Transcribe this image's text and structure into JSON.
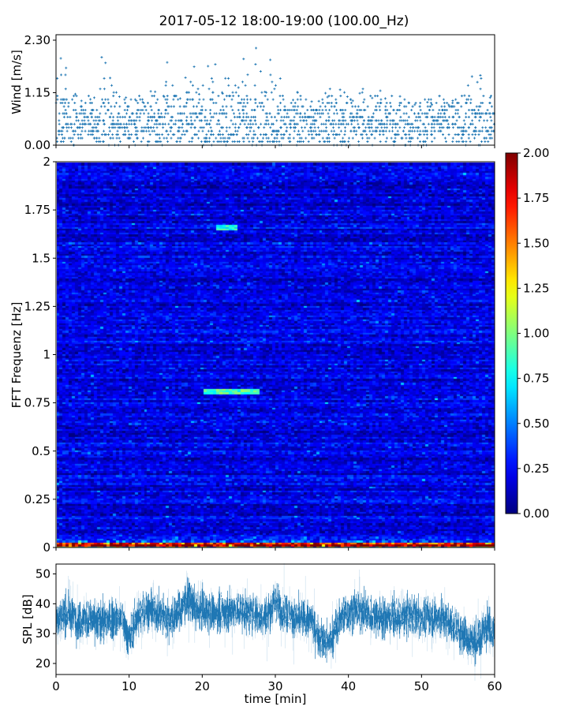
{
  "title": "2017-05-12 18:00-19:00 (100.00_Hz)",
  "chart_data": [
    {
      "type": "scatter",
      "ylabel": "Wind [m/s]",
      "xlim": [
        0,
        60
      ],
      "ylim": [
        0,
        2.42
      ],
      "yticks": [
        "0.00",
        "1.15",
        "2.30"
      ],
      "marker": "+",
      "color": "#1f77b4",
      "per_minute_max": [
        2.0,
        1.7,
        1.2,
        1.0,
        1.1,
        1.2,
        1.9,
        1.6,
        1.2,
        1.2,
        1.0,
        1.1,
        1.3,
        1.2,
        1.2,
        1.9,
        1.2,
        1.6,
        1.9,
        1.2,
        2.0,
        1.9,
        1.3,
        1.7,
        1.3,
        1.9,
        1.7,
        2.3,
        1.2,
        1.9,
        1.6,
        1.2,
        1.1,
        1.2,
        1.1,
        1.0,
        1.2,
        1.2,
        1.3,
        1.2,
        1.1,
        1.2,
        1.0,
        1.1,
        1.2,
        1.1,
        1.0,
        1.1,
        1.0,
        1.0,
        1.1,
        1.0,
        1.1,
        1.0,
        1.0,
        1.1,
        1.6,
        1.4,
        1.6,
        1.2
      ]
    },
    {
      "type": "heatmap",
      "ylabel": "FFT Frequenz [Hz]",
      "xlim": [
        0,
        60
      ],
      "ylim": [
        0,
        2
      ],
      "yticks": [
        "0",
        "0.25",
        "0.5",
        "0.75",
        "1",
        "1.25",
        "1.5",
        "1.75",
        "2"
      ],
      "colormap": "jet",
      "clim": [
        0,
        2
      ],
      "colorbar_ticks": [
        "0.00",
        "0.25",
        "0.50",
        "0.75",
        "1.00",
        "1.25",
        "1.50",
        "1.75",
        "2.00"
      ],
      "typical_value": 0.2,
      "features": [
        {
          "freq": 0.82,
          "t_start": 20,
          "t_end": 28,
          "value": 1.0
        },
        {
          "freq": 1.67,
          "t_start": 22,
          "t_end": 25,
          "value": 0.9
        },
        {
          "freq": 0.02,
          "t_start": 0,
          "t_end": 60,
          "value": 1.6
        }
      ]
    },
    {
      "type": "line",
      "ylabel": "SPL [dB]",
      "xlabel": "time [min]",
      "xlim": [
        0,
        60
      ],
      "ylim": [
        16.3,
        53.3
      ],
      "yticks": [
        "20",
        "30",
        "40",
        "50"
      ],
      "xticks": [
        "0",
        "10",
        "20",
        "30",
        "40",
        "50",
        "60"
      ],
      "color": "#1f77b4",
      "per_minute_mean": [
        35,
        36,
        37,
        34,
        35,
        34,
        34,
        34,
        35,
        35,
        28,
        35,
        38,
        38,
        37,
        35,
        35,
        38,
        42,
        38,
        38,
        37,
        37,
        37,
        38,
        38,
        37,
        37,
        36,
        36,
        41,
        38,
        36,
        35,
        35,
        34,
        29,
        26,
        30,
        36,
        37,
        38,
        37,
        36,
        36,
        35,
        36,
        35,
        36,
        36,
        35,
        36,
        35,
        35,
        33,
        31,
        29,
        27,
        28,
        34,
        30
      ]
    }
  ]
}
